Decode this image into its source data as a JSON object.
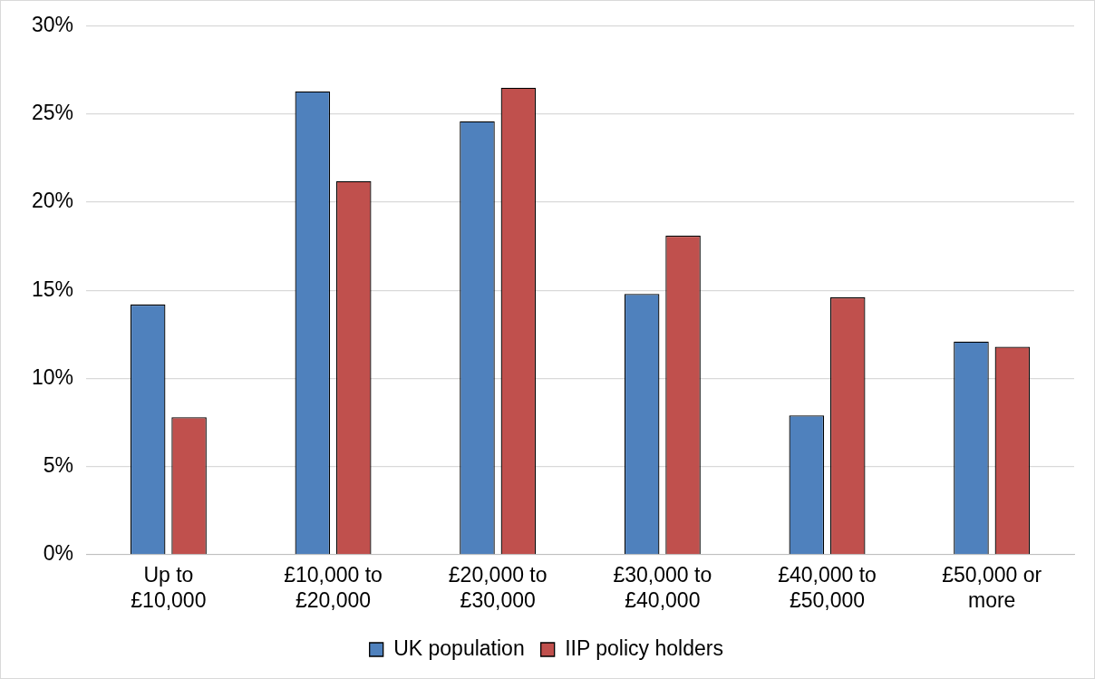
{
  "chart_data": {
    "type": "bar",
    "categories": [
      "Up to £10,000",
      "£10,000 to £20,000",
      "£20,000 to £30,000",
      "£30,000 to £40,000",
      "£40,000 to £50,000",
      "£50,000 or more"
    ],
    "series": [
      {
        "name": "UK population",
        "color": "#4f81bd",
        "values": [
          14.2,
          26.3,
          24.6,
          14.8,
          7.9,
          12.1
        ]
      },
      {
        "name": "IIP policy holders",
        "color": "#c0504d",
        "values": [
          7.8,
          21.2,
          26.5,
          18.1,
          14.6,
          11.8
        ]
      }
    ],
    "ylim": [
      0,
      30
    ],
    "yticks": [
      {
        "value": 0,
        "label": "0%"
      },
      {
        "value": 5,
        "label": "5%"
      },
      {
        "value": 10,
        "label": "10%"
      },
      {
        "value": 15,
        "label": "15%"
      },
      {
        "value": 20,
        "label": "20%"
      },
      {
        "value": 25,
        "label": "25%"
      },
      {
        "value": 30,
        "label": "30%"
      }
    ],
    "grid": "y",
    "legend": "bottom"
  }
}
